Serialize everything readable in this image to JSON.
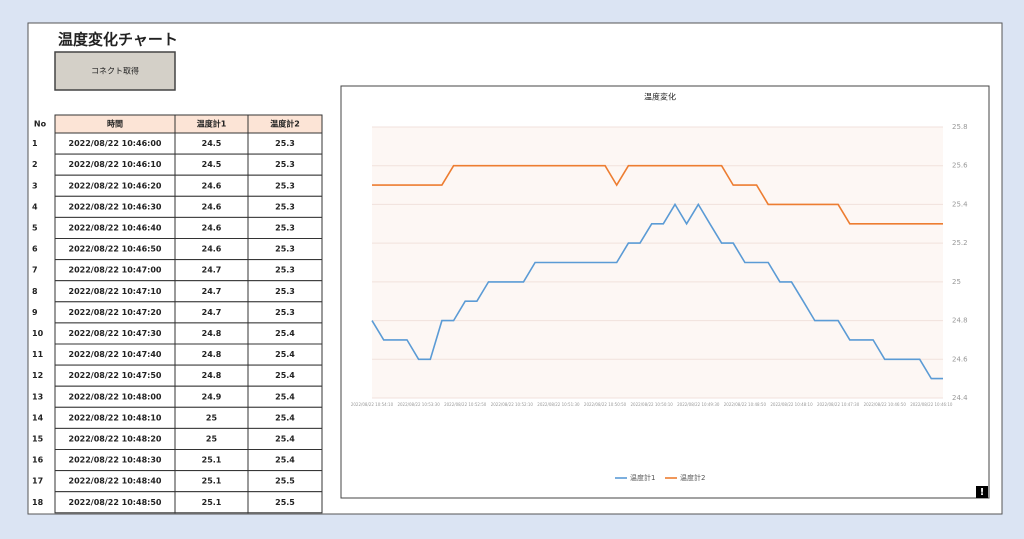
{
  "header": {
    "title": "温度変化チャート",
    "button": "コネクト取得"
  },
  "table": {
    "columns": [
      "No",
      "時間",
      "温度計1",
      "温度計2"
    ],
    "rows": [
      [
        1,
        "2022/08/22 10:46:00",
        24.5,
        25.3
      ],
      [
        2,
        "2022/08/22 10:46:10",
        24.5,
        25.3
      ],
      [
        3,
        "2022/08/22 10:46:20",
        24.6,
        25.3
      ],
      [
        4,
        "2022/08/22 10:46:30",
        24.6,
        25.3
      ],
      [
        5,
        "2022/08/22 10:46:40",
        24.6,
        25.3
      ],
      [
        6,
        "2022/08/22 10:46:50",
        24.6,
        25.3
      ],
      [
        7,
        "2022/08/22 10:47:00",
        24.7,
        25.3
      ],
      [
        8,
        "2022/08/22 10:47:10",
        24.7,
        25.3
      ],
      [
        9,
        "2022/08/22 10:47:20",
        24.7,
        25.3
      ],
      [
        10,
        "2022/08/22 10:47:30",
        24.8,
        25.4
      ],
      [
        11,
        "2022/08/22 10:47:40",
        24.8,
        25.4
      ],
      [
        12,
        "2022/08/22 10:47:50",
        24.8,
        25.4
      ],
      [
        13,
        "2022/08/22 10:48:00",
        24.9,
        25.4
      ],
      [
        14,
        "2022/08/22 10:48:10",
        25,
        25.4
      ],
      [
        15,
        "2022/08/22 10:48:20",
        25,
        25.4
      ],
      [
        16,
        "2022/08/22 10:48:30",
        25.1,
        25.4
      ],
      [
        17,
        "2022/08/22 10:48:40",
        25.1,
        25.5
      ],
      [
        18,
        "2022/08/22 10:48:50",
        25.1,
        25.5
      ]
    ]
  },
  "chart_data": {
    "type": "line",
    "title": "温度変化",
    "categories": [
      "2022/08/22 10:54:10",
      null,
      null,
      null,
      "2022/08/22 10:53:30",
      null,
      null,
      null,
      "2022/08/22 10:52:50",
      null,
      null,
      null,
      "2022/08/22 10:52:10",
      null,
      null,
      null,
      "2022/08/22 10:51:30",
      null,
      null,
      null,
      "2022/08/22 10:50:50",
      null,
      null,
      null,
      "2022/08/22 10:50:10",
      null,
      null,
      null,
      "2022/08/22 10:49:30",
      null,
      null,
      null,
      "2022/08/22 10:48:50",
      null,
      null,
      null,
      "2022/08/22 10:48:10",
      null,
      null,
      null,
      "2022/08/22 10:47:30",
      null,
      null,
      null,
      "2022/08/22 10:46:50",
      null,
      null,
      null,
      "2022/08/22 10:46:10",
      null
    ],
    "series": [
      {
        "name": "温度計1",
        "color": "#5b9bd5",
        "values": [
          24.8,
          24.7,
          24.7,
          24.7,
          24.6,
          24.6,
          24.8,
          24.8,
          24.9,
          24.9,
          25.0,
          25.0,
          25.0,
          25.0,
          25.1,
          25.1,
          25.1,
          25.1,
          25.1,
          25.1,
          25.1,
          25.1,
          25.2,
          25.2,
          25.3,
          25.3,
          25.4,
          25.3,
          25.4,
          25.3,
          25.2,
          25.2,
          25.1,
          25.1,
          25.1,
          25.0,
          25.0,
          24.9,
          24.8,
          24.8,
          24.8,
          24.7,
          24.7,
          24.7,
          24.6,
          24.6,
          24.6,
          24.6,
          24.5,
          24.5
        ]
      },
      {
        "name": "温度計2",
        "color": "#ed7d31",
        "values": [
          25.5,
          25.5,
          25.5,
          25.5,
          25.5,
          25.5,
          25.5,
          25.6,
          25.6,
          25.6,
          25.6,
          25.6,
          25.6,
          25.6,
          25.6,
          25.6,
          25.6,
          25.6,
          25.6,
          25.6,
          25.6,
          25.5,
          25.6,
          25.6,
          25.6,
          25.6,
          25.6,
          25.6,
          25.6,
          25.6,
          25.6,
          25.5,
          25.5,
          25.5,
          25.4,
          25.4,
          25.4,
          25.4,
          25.4,
          25.4,
          25.4,
          25.3,
          25.3,
          25.3,
          25.3,
          25.3,
          25.3,
          25.3,
          25.3,
          25.3
        ]
      }
    ],
    "ylim": [
      24.4,
      25.8
    ],
    "yticks": [
      24.4,
      24.6,
      24.8,
      25,
      25.2,
      25.4,
      25.6,
      25.8
    ],
    "grid": true,
    "legend": "bottom",
    "alert_icon": "!"
  }
}
